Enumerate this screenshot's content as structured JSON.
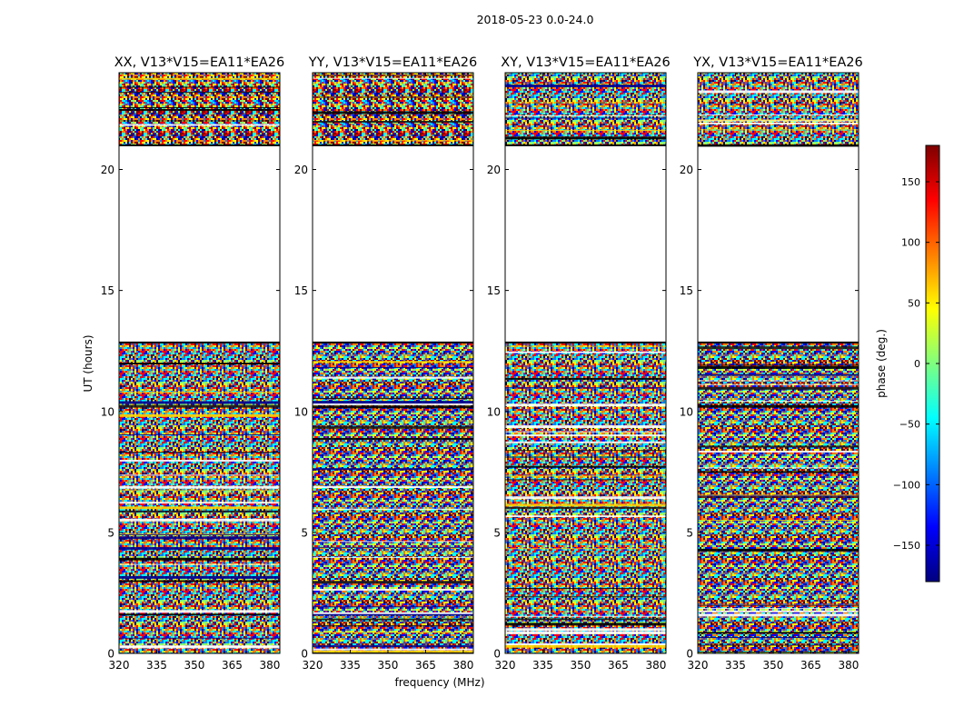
{
  "figure": {
    "suptitle": "2018-05-23 0.0-24.0"
  },
  "chart_data": {
    "type": "heatmap",
    "xlabel": "frequency (MHz)",
    "ylabel": "UT (hours)",
    "xlim": [
      320,
      384
    ],
    "ylim": [
      0,
      24
    ],
    "xticks": [
      320,
      335,
      350,
      365,
      380
    ],
    "yticks": [
      0,
      5,
      10,
      15,
      20
    ],
    "panels": [
      {
        "title": "XX, V13*V15=EA11*EA26",
        "pol": "XX"
      },
      {
        "title": "YY, V13*V15=EA11*EA26",
        "pol": "YY"
      },
      {
        "title": "XY, V13*V15=EA11*EA26",
        "pol": "XY"
      },
      {
        "title": "YX, V13*V15=EA11*EA26",
        "pol": "YX"
      }
    ],
    "data_gaps_hours": [
      [
        12.85,
        21.0
      ]
    ],
    "colorbar": {
      "label": "phase (deg.)",
      "range": [
        -180,
        180
      ],
      "ticks": [
        -150,
        -100,
        -50,
        0,
        50,
        100,
        150
      ],
      "tick_labels": [
        "−150",
        "−100",
        "−50",
        "0",
        "50",
        "100",
        "150"
      ],
      "colormap": "jet"
    }
  },
  "colors": {
    "jet": [
      "#00007f",
      "#0000ff",
      "#007fff",
      "#00ffff",
      "#7fff7f",
      "#ffff00",
      "#ff7f00",
      "#ff0000",
      "#7f0000"
    ],
    "axis": "#000000",
    "background": "#ffffff"
  }
}
